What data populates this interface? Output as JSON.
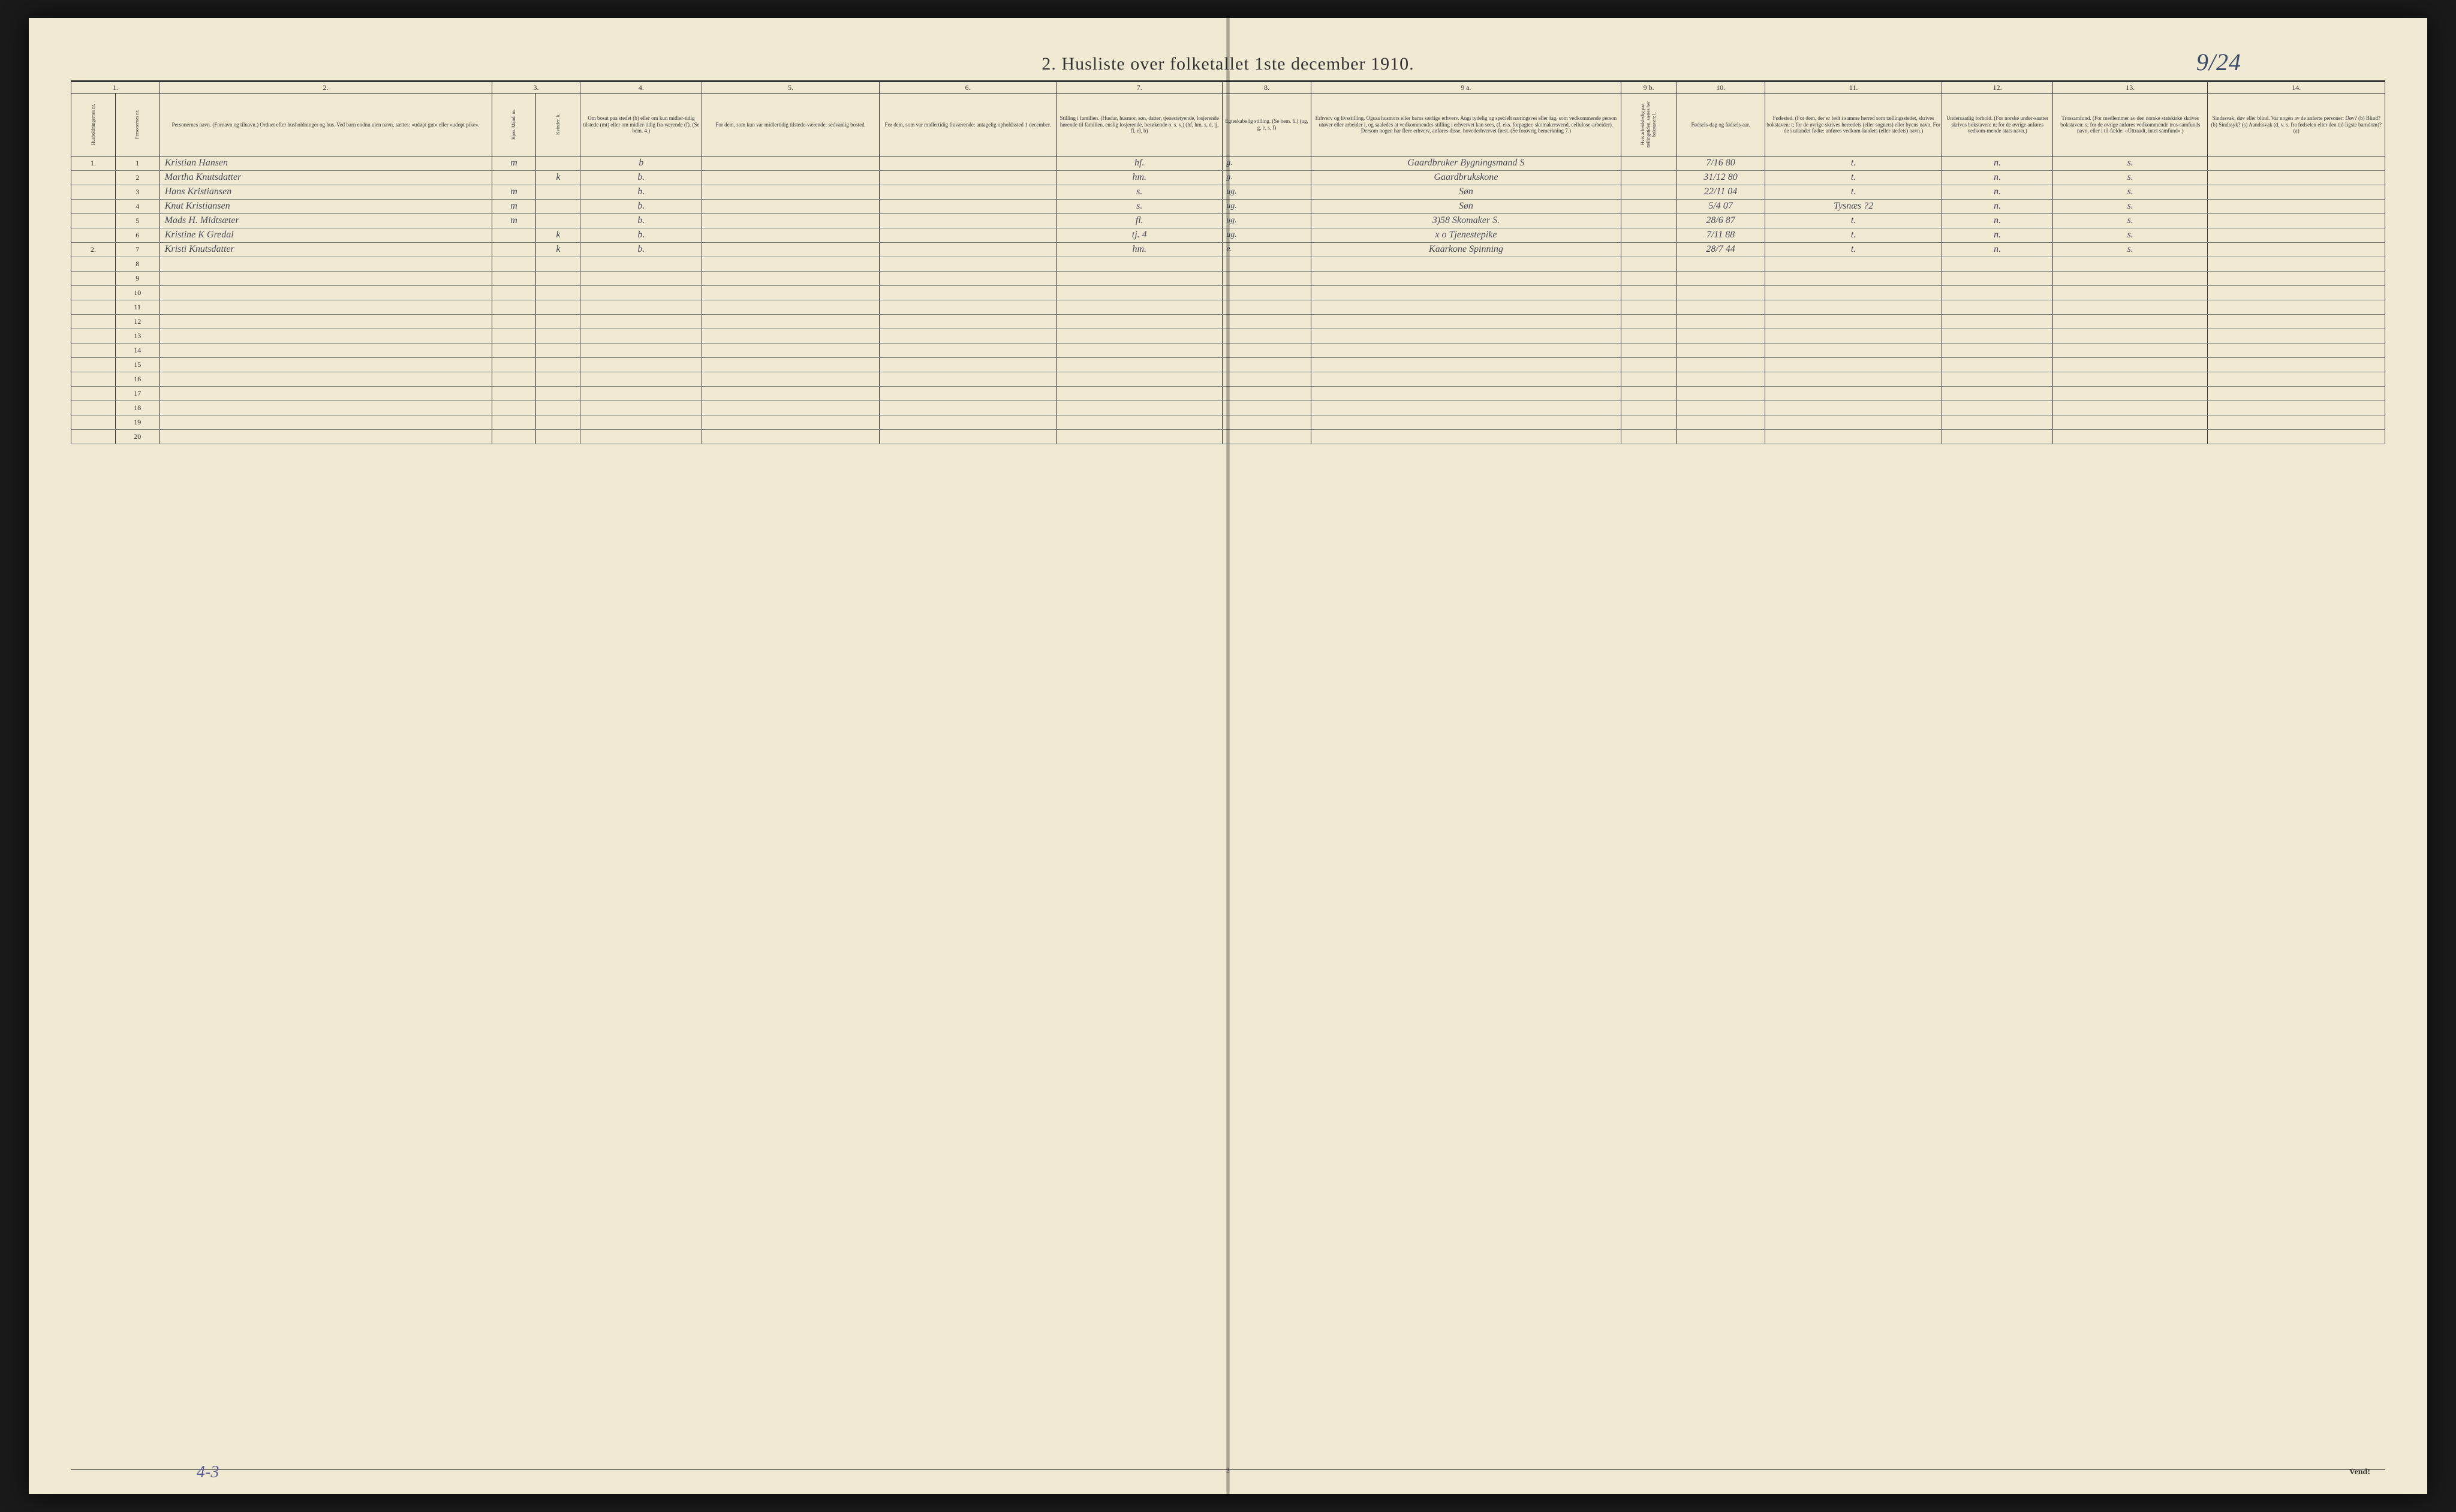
{
  "title": "2.  Husliste over folketallet 1ste december 1910.",
  "top_annotation": "9/24",
  "bottom_tally": "4-3",
  "page_number": "2",
  "vend_label": "Vend!",
  "colors": {
    "paper": "#f0ead3",
    "ink": "#333333",
    "handwriting": "#4a4a5a",
    "pencil_blue": "#5a5a9a",
    "border_dark": "#333333"
  },
  "columns": {
    "nums": [
      "1.",
      "",
      "2.",
      "3.",
      "",
      "4.",
      "5.",
      "6.",
      "7.",
      "8.",
      "9 a.",
      "9 b.",
      "10.",
      "11.",
      "12.",
      "13.",
      "14."
    ],
    "widths": [
      2.0,
      2.0,
      15,
      2.0,
      2.0,
      5.5,
      8,
      8,
      7.5,
      4,
      14,
      2.5,
      4,
      8,
      5,
      7,
      8
    ],
    "headers": [
      "Husholdningernes nr.",
      "Personernes nr.",
      "Personernes navn.\n(Fornavn og tilnavn.)\nOrdnet efter husholdninger og hus.\nVed barn endnu uten navn, sættes: «udøpt gut» eller «udøpt pike».",
      "Kjøn.\nMand. m.",
      "Kvinder. k.",
      "Om bosat paa stedet (b) eller om kun midler-tidig tilstede (mt) eller om midler-tidig fra-værende (f). (Se bem. 4.)",
      "For dem, som kun var midlertidig tilstede-værende:\nsedvanlig bosted.",
      "For dem, som var midlertidig fraværende:\nantagelig opholdssted 1 december.",
      "Stilling i familien.\n(Husfar, husmor, søn, datter, tjenestetyende, losjerende hørende til familien, enslig losjerende, besøkende o. s. v.)\n(hf, hm, s, d, tj, fl, el, b)",
      "Egteskabelig stilling.\n(Se bem. 6.)\n(ug, g, e, s, f)",
      "Erhverv og livsstilling.\nOgsaa husmors eller barns særlige erhverv. Angi tydelig og specielt næringsvei eller fag, som vedkommende person utøver eller arbeider i, og saaledes at vedkommendes stilling i erhvervet kan sees, (f. eks. forpagter, skomakersvend, cellulose-arbeider). Dersom nogen har flere erhverv, anføres disse, hovederhvervet først. (Se forøvrig bemerkning 7.)",
      "Hvis arbeidsledig paa tællingstiden, sættes her bokstaven: l.",
      "Fødsels-dag og fødsels-aar.",
      "Fødested.\n(For dem, der er født i samme herred som tællingsstedet, skrives bokstaven: t; for de øvrige skrives herredets (eller sognets) eller byens navn. For de i utlandet fødte: anføres vedkom-landets (eller stedets) navn.)",
      "Undersaatlig forhold.\n(For norske under-saatter skrives bokstaven: n; for de øvrige anføres vedkom-mende stats navn.)",
      "Trossamfund.\n(For medlemmer av den norske statskirke skrives bokstaven: s; for de øvrige anføres vedkommende tros-samfunds navn, eller i til-fælde: «Uttraadt, intet samfund».)",
      "Sindssvak, døv eller blind.\nVar nogen av de anførte personer:\nDøv?  (b)\nBlind?  (b)\nSindssyk?  (s)\nAandssvak (d. v. s. fra fødselen eller den tid-ligste barndom)?  (a)"
    ]
  },
  "rows": [
    {
      "hh": "1.",
      "pn": "1",
      "name": "Kristian Hansen",
      "m": "m",
      "k": "",
      "res": "b",
      "mt": "",
      "mf": "",
      "fam": "hf.",
      "civ": "g.",
      "occ": "Gaardbruker Bygningsmand S",
      "al": "",
      "dob": "7/16 80",
      "bp": "t.",
      "nat": "n.",
      "rel": "s.",
      "inf": ""
    },
    {
      "hh": "",
      "pn": "2",
      "name": "Martha Knutsdatter",
      "m": "",
      "k": "k",
      "res": "b.",
      "mt": "",
      "mf": "",
      "fam": "hm.",
      "civ": "g.",
      "occ": "Gaardbrukskone",
      "al": "",
      "dob": "31/12 80",
      "bp": "t.",
      "nat": "n.",
      "rel": "s.",
      "inf": ""
    },
    {
      "hh": "",
      "pn": "3",
      "name": "Hans Kristiansen",
      "m": "m",
      "k": "",
      "res": "b.",
      "mt": "",
      "mf": "",
      "fam": "s.",
      "civ": "ug.",
      "occ": "Søn",
      "al": "",
      "dob": "22/11 04",
      "bp": "t.",
      "nat": "n.",
      "rel": "s.",
      "inf": ""
    },
    {
      "hh": "",
      "pn": "4",
      "name": "Knut Kristiansen",
      "m": "m",
      "k": "",
      "res": "b.",
      "mt": "",
      "mf": "",
      "fam": "s.",
      "civ": "ug.",
      "occ": "Søn",
      "al": "",
      "dob": "5/4 07",
      "bp": "Tysnæs ?2",
      "nat": "n.",
      "rel": "s.",
      "inf": ""
    },
    {
      "hh": "",
      "pn": "5",
      "name": "Mads H. Midtsæter",
      "m": "m",
      "k": "",
      "res": "b.",
      "mt": "",
      "mf": "",
      "fam": "fl.",
      "civ": "ug.",
      "occ": "3)58 Skomaker  S.",
      "al": "",
      "dob": "28/6 87",
      "bp": "t.",
      "nat": "n.",
      "rel": "s.",
      "inf": ""
    },
    {
      "hh": "",
      "pn": "6",
      "name": "Kristine K Gredal",
      "m": "",
      "k": "k",
      "res": "b.",
      "mt": "",
      "mf": "",
      "fam": "tj.  4",
      "civ": "ug.",
      "occ": "x o  Tjenestepike",
      "al": "",
      "dob": "7/11 88",
      "bp": "t.",
      "nat": "n.",
      "rel": "s.",
      "inf": ""
    },
    {
      "hh": "2.",
      "pn": "7",
      "name": "Kristi Knutsdatter",
      "m": "",
      "k": "k",
      "res": "b.",
      "mt": "",
      "mf": "",
      "fam": "hm.",
      "civ": "e.",
      "occ": "Kaarkone Spinning",
      "al": "",
      "dob": "28/7 44",
      "bp": "t.",
      "nat": "n.",
      "rel": "s.",
      "inf": ""
    }
  ],
  "empty_rows_start": 8,
  "empty_rows_end": 20
}
